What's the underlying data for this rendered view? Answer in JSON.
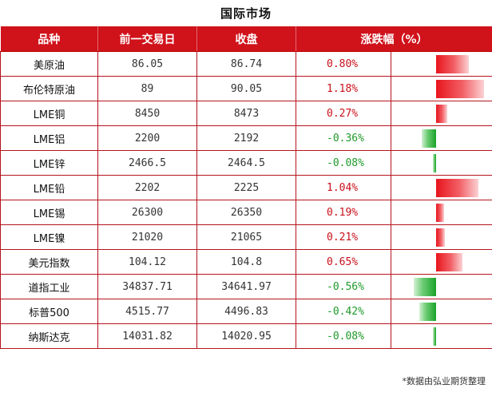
{
  "title": "国际市场",
  "headers": {
    "name": "品种",
    "prev_close": "前一交易日",
    "close": "收盘",
    "change": "涨跌幅（%）"
  },
  "rows": [
    {
      "name": "美原油",
      "prev": "86.05",
      "close": "86.74",
      "pct": "0.80%",
      "value": 0.8
    },
    {
      "name": "布伦特原油",
      "prev": "89",
      "close": "90.05",
      "pct": "1.18%",
      "value": 1.18
    },
    {
      "name": "LME铜",
      "prev": "8450",
      "close": "8473",
      "pct": "0.27%",
      "value": 0.27
    },
    {
      "name": "LME铝",
      "prev": "2200",
      "close": "2192",
      "pct": "-0.36%",
      "value": -0.36
    },
    {
      "name": "LME锌",
      "prev": "2466.5",
      "close": "2464.5",
      "pct": "-0.08%",
      "value": -0.08
    },
    {
      "name": "LME铅",
      "prev": "2202",
      "close": "2225",
      "pct": "1.04%",
      "value": 1.04
    },
    {
      "name": "LME锡",
      "prev": "26300",
      "close": "26350",
      "pct": "0.19%",
      "value": 0.19
    },
    {
      "name": "LME镍",
      "prev": "21020",
      "close": "21065",
      "pct": "0.21%",
      "value": 0.21
    },
    {
      "name": "美元指数",
      "prev": "104.12",
      "close": "104.8",
      "pct": "0.65%",
      "value": 0.65
    },
    {
      "name": "道指工业",
      "prev": "34837.71",
      "close": "34641.97",
      "pct": "-0.56%",
      "value": -0.56
    },
    {
      "name": "标普500",
      "prev": "4515.77",
      "close": "4496.83",
      "pct": "-0.42%",
      "value": -0.42
    },
    {
      "name": "纳斯达克",
      "prev": "14031.82",
      "close": "14020.95",
      "pct": "-0.08%",
      "value": -0.08
    }
  ],
  "colors": {
    "header": "#d0121b",
    "up": "#c8101a",
    "down": "#1f9a2a"
  },
  "footer": "*数据由弘业期货整理"
}
